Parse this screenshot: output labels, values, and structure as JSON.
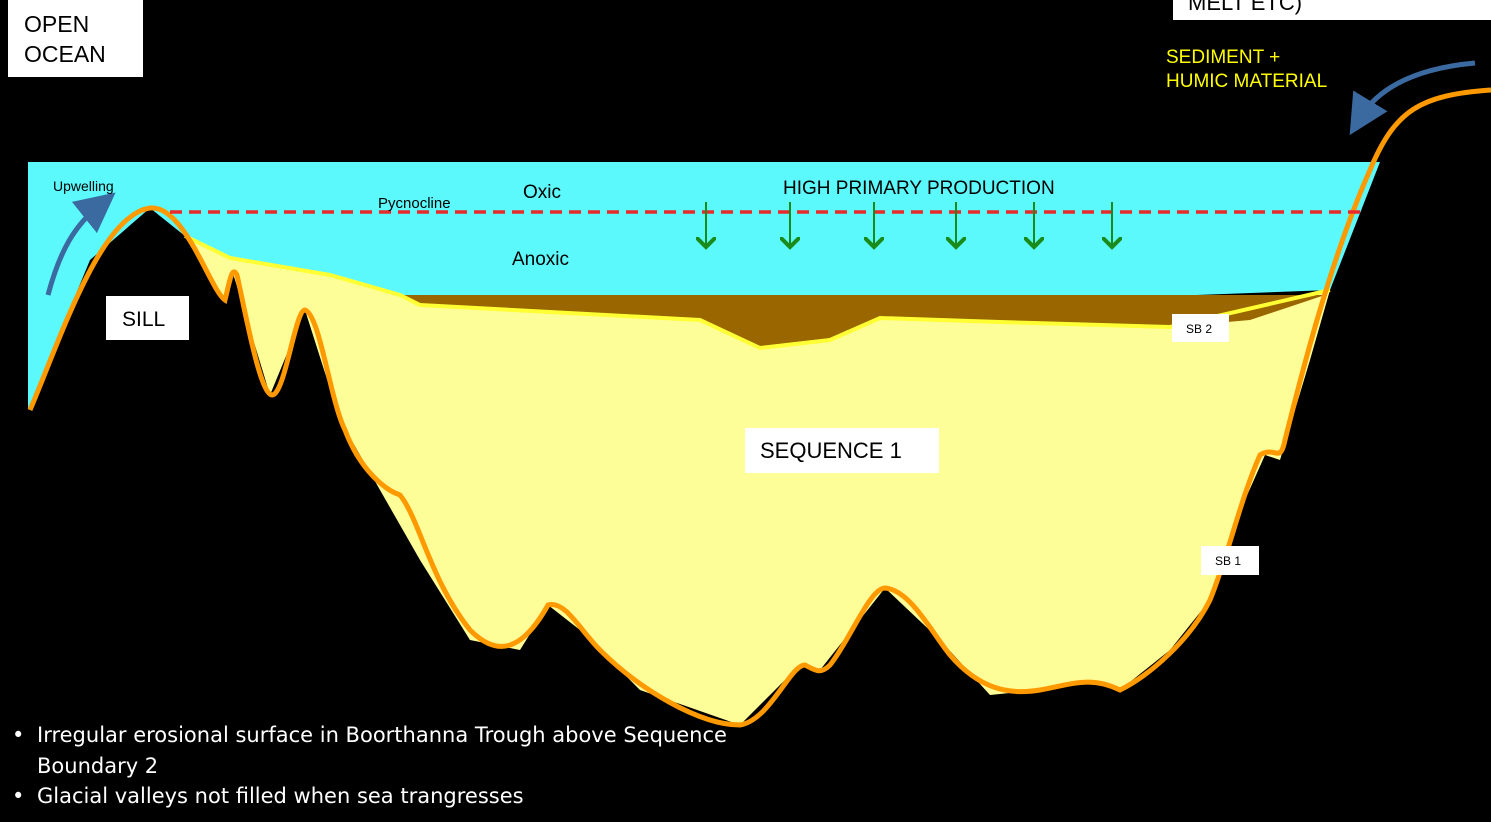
{
  "labels": {
    "open_ocean": [
      "OPEN",
      "OCEAN"
    ],
    "top_right": "MELT ETC)",
    "sediment": [
      "SEDIMENT +",
      "HUMIC MATERIAL"
    ],
    "upwelling": "Upwelling",
    "pycnocline": "Pycnocline",
    "oxic": "Oxic",
    "high_production": "HIGH PRIMARY PRODUCTION",
    "anoxic": "Anoxic",
    "sill": "SILL",
    "sb2": "SB 2",
    "sequence1": "SEQUENCE 1",
    "sb1": "SB 1"
  },
  "bullets": [
    [
      "Irregular erosional surface in Boorthanna Trough above Sequence",
      "Boundary 2"
    ],
    [
      "Glacial valleys not filled when sea trangresses"
    ]
  ]
}
